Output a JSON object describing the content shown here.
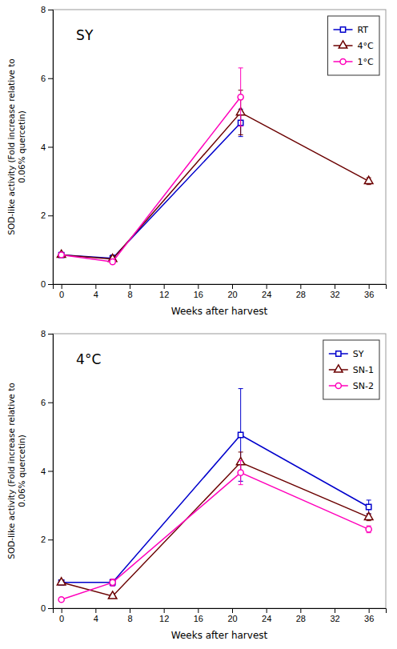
{
  "chart_data": [
    {
      "type": "line",
      "title": "SY",
      "x_label": "Weeks after harvest",
      "y_label": "SOD-like activity (Fold increase relative to\n0.06% quercetin)",
      "series": [
        {
          "name": "RT",
          "color": "#0000CC",
          "marker": "square",
          "x": [
            0,
            6,
            21
          ],
          "values": [
            0.85,
            0.75,
            4.7
          ],
          "errors": [
            0.05,
            0.1,
            0.4
          ]
        },
        {
          "name": "4°C",
          "color": "#6B0000",
          "marker": "triangle",
          "x": [
            0,
            6,
            21,
            36
          ],
          "values": [
            0.85,
            0.73,
            5.0,
            3.0
          ],
          "errors": [
            0.05,
            0.08,
            0.65,
            0.1
          ]
        },
        {
          "name": "1°C",
          "color": "#FF00BB",
          "marker": "circle",
          "x": [
            0,
            6,
            21
          ],
          "values": [
            0.85,
            0.65,
            5.45
          ],
          "errors": [
            0.05,
            0.06,
            0.85
          ]
        }
      ],
      "xlim": [
        -1,
        38
      ],
      "xticks": [
        0,
        4,
        8,
        12,
        16,
        20,
        24,
        28,
        32,
        36
      ],
      "ylim": [
        0,
        8
      ],
      "yticks": [
        0,
        2,
        4,
        6,
        8
      ],
      "legend": "upper right"
    },
    {
      "type": "line",
      "title": "4°C",
      "x_label": "Weeks after harvest",
      "y_label": "SOD-like activity (Fold increase relative to\n0.06% quercetin)",
      "series": [
        {
          "name": "SY",
          "color": "#0000CC",
          "marker": "square",
          "x": [
            0,
            6,
            21,
            36
          ],
          "values": [
            0.75,
            0.75,
            5.05,
            2.95
          ],
          "errors": [
            0.05,
            0.1,
            1.35,
            0.2
          ]
        },
        {
          "name": "SN-1",
          "color": "#6B0000",
          "marker": "triangle",
          "x": [
            0,
            6,
            21,
            36
          ],
          "values": [
            0.75,
            0.35,
            4.25,
            2.65
          ],
          "errors": [
            0.06,
            0.06,
            0.3,
            0.1
          ]
        },
        {
          "name": "SN-2",
          "color": "#FF00BB",
          "marker": "circle",
          "x": [
            0,
            6,
            21,
            36
          ],
          "values": [
            0.25,
            0.75,
            3.95,
            2.3
          ],
          "errors": [
            0.05,
            0.1,
            0.35,
            0.1
          ]
        }
      ],
      "xlim": [
        -1,
        38
      ],
      "xticks": [
        0,
        4,
        8,
        12,
        16,
        20,
        24,
        28,
        32,
        36
      ],
      "ylim": [
        0,
        8
      ],
      "yticks": [
        0,
        2,
        4,
        6,
        8
      ],
      "legend": "upper right"
    }
  ]
}
